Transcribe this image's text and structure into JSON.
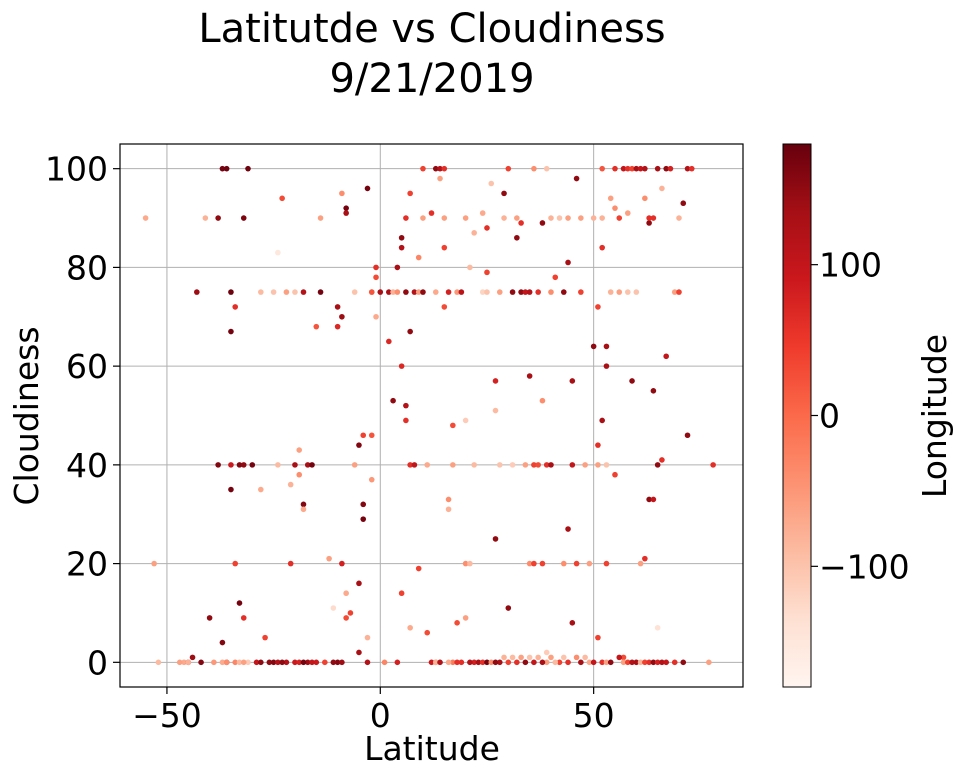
{
  "chart_data": {
    "type": "scatter",
    "title": [
      "Latitutde vs Cloudiness",
      "9/21/2019"
    ],
    "xlabel": "Latitude",
    "ylabel": "Cloudiness",
    "xlim": [
      -61,
      85
    ],
    "ylim": [
      -5,
      105
    ],
    "xticks": [
      -50,
      0,
      50
    ],
    "yticks": [
      0,
      20,
      40,
      60,
      80,
      100
    ],
    "grid": true,
    "colormap": "Reds",
    "colorbar": {
      "label": "Longitude",
      "range": [
        -180,
        180
      ],
      "ticks": [
        -100,
        0,
        100
      ],
      "colors": [
        "#fff5f0",
        "#fee0d2",
        "#fcbba1",
        "#fc9272",
        "#fb6a4a",
        "#ef3b2c",
        "#cb181d",
        "#a50f15",
        "#67000d"
      ]
    },
    "points": [
      [
        -55,
        90,
        -70
      ],
      [
        -53,
        20,
        -60
      ],
      [
        -52,
        0,
        -90
      ],
      [
        -46,
        0,
        -70
      ],
      [
        -45,
        0,
        120
      ],
      [
        -44,
        1,
        140
      ],
      [
        -43,
        75,
        140
      ],
      [
        -42,
        0,
        160
      ],
      [
        -41,
        90,
        -80
      ],
      [
        -40,
        9,
        150
      ],
      [
        -38,
        90,
        150
      ],
      [
        -38,
        40,
        160
      ],
      [
        -37,
        100,
        170
      ],
      [
        -37,
        4,
        160
      ],
      [
        -36,
        100,
        175
      ],
      [
        -36,
        0,
        120
      ],
      [
        -35,
        67,
        170
      ],
      [
        -35,
        75,
        175
      ],
      [
        -35,
        35,
        170
      ],
      [
        -35,
        40,
        90
      ],
      [
        -34,
        72,
        60
      ],
      [
        -34,
        20,
        40
      ],
      [
        -34,
        0,
        -30
      ],
      [
        -33,
        12,
        170
      ],
      [
        -33,
        40,
        160
      ],
      [
        -32,
        9,
        60
      ],
      [
        -32,
        90,
        165
      ],
      [
        -32,
        40,
        150
      ],
      [
        -31,
        100,
        175
      ],
      [
        -31,
        0,
        -110
      ],
      [
        -30,
        40,
        170
      ],
      [
        -28,
        75,
        -90
      ],
      [
        -28,
        35,
        -70
      ],
      [
        -27,
        5,
        40
      ],
      [
        -26,
        0,
        150
      ],
      [
        -25,
        75,
        -100
      ],
      [
        -24,
        83,
        -150
      ],
      [
        -24,
        40,
        -90
      ],
      [
        -23,
        94,
        30
      ],
      [
        -22,
        75,
        -60
      ],
      [
        -22,
        0,
        120
      ],
      [
        -21,
        20,
        60
      ],
      [
        -21,
        36,
        -80
      ],
      [
        -20,
        40,
        130
      ],
      [
        -20,
        0,
        90
      ],
      [
        -20,
        75,
        -100
      ],
      [
        -19,
        43,
        -60
      ],
      [
        -19,
        38,
        -40
      ],
      [
        -18,
        75,
        120
      ],
      [
        -18,
        32,
        160
      ],
      [
        -18,
        31,
        -70
      ],
      [
        -17,
        40,
        130
      ],
      [
        -17,
        0,
        140
      ],
      [
        -16,
        40,
        170
      ],
      [
        -15,
        68,
        20
      ],
      [
        -15,
        0,
        90
      ],
      [
        -14,
        90,
        -60
      ],
      [
        -14,
        75,
        170
      ],
      [
        -13,
        0,
        40
      ],
      [
        -12,
        21,
        -60
      ],
      [
        -11,
        11,
        -130
      ],
      [
        -10,
        72,
        130
      ],
      [
        -10,
        68,
        70
      ],
      [
        -10,
        0,
        160
      ],
      [
        -9,
        70,
        140
      ],
      [
        -9,
        95,
        -40
      ],
      [
        -9,
        20,
        80
      ],
      [
        -8,
        92,
        170
      ],
      [
        -8,
        91,
        130
      ],
      [
        -8,
        9,
        30
      ],
      [
        -8,
        14,
        -70
      ],
      [
        -7,
        10,
        40
      ],
      [
        -6,
        75,
        -100
      ],
      [
        -6,
        40,
        -60
      ],
      [
        -5,
        44,
        160
      ],
      [
        -5,
        16,
        130
      ],
      [
        -5,
        2,
        130
      ],
      [
        -4,
        29,
        170
      ],
      [
        -4,
        32,
        160
      ],
      [
        -4,
        46,
        40
      ],
      [
        -3,
        96,
        170
      ],
      [
        -3,
        5,
        -80
      ],
      [
        -3,
        0,
        120
      ],
      [
        -2,
        46,
        20
      ],
      [
        -2,
        75,
        -70
      ],
      [
        -2,
        37,
        -50
      ],
      [
        -2,
        75,
        20
      ],
      [
        -1,
        70,
        -70
      ],
      [
        -1,
        80,
        60
      ],
      [
        -1,
        78,
        30
      ],
      [
        0,
        75,
        130
      ],
      [
        1,
        0,
        -30
      ],
      [
        2,
        65,
        70
      ],
      [
        2,
        75,
        130
      ],
      [
        3,
        53,
        150
      ],
      [
        3,
        75,
        -80
      ],
      [
        4,
        0,
        80
      ],
      [
        4,
        80,
        130
      ],
      [
        4,
        75,
        -40
      ],
      [
        5,
        86,
        150
      ],
      [
        5,
        84,
        120
      ],
      [
        5,
        60,
        70
      ],
      [
        5,
        14,
        40
      ],
      [
        6,
        90,
        60
      ],
      [
        6,
        49,
        60
      ],
      [
        6,
        52,
        120
      ],
      [
        6,
        75,
        150
      ],
      [
        7,
        95,
        40
      ],
      [
        7,
        40,
        60
      ],
      [
        7,
        67,
        150
      ],
      [
        7,
        7,
        -70
      ],
      [
        8,
        75,
        120
      ],
      [
        8,
        40,
        100
      ],
      [
        9,
        82,
        -30
      ],
      [
        9,
        75,
        -60
      ],
      [
        9,
        19,
        40
      ],
      [
        10,
        75,
        150
      ],
      [
        10,
        100,
        40
      ],
      [
        10,
        90,
        -60
      ],
      [
        11,
        40,
        -70
      ],
      [
        11,
        6,
        30
      ],
      [
        12,
        91,
        60
      ],
      [
        12,
        0,
        90
      ],
      [
        13,
        75,
        -70
      ],
      [
        13,
        100,
        150
      ],
      [
        13,
        0,
        40
      ],
      [
        14,
        100,
        120
      ],
      [
        14,
        98,
        -60
      ],
      [
        15,
        100,
        60
      ],
      [
        15,
        90,
        -60
      ],
      [
        15,
        84,
        40
      ],
      [
        15,
        72,
        30
      ],
      [
        16,
        75,
        80
      ],
      [
        16,
        33,
        -40
      ],
      [
        16,
        31,
        -80
      ],
      [
        17,
        40,
        -60
      ],
      [
        17,
        0,
        -20
      ],
      [
        17,
        48,
        30
      ],
      [
        18,
        75,
        -50
      ],
      [
        18,
        8,
        30
      ],
      [
        19,
        75,
        110
      ],
      [
        19,
        0,
        60
      ],
      [
        20,
        49,
        -110
      ],
      [
        20,
        90,
        -60
      ],
      [
        20,
        20,
        -40
      ],
      [
        20,
        9,
        -60
      ],
      [
        21,
        80,
        -90
      ],
      [
        21,
        20,
        -90
      ],
      [
        22,
        87,
        -80
      ],
      [
        22,
        40,
        -90
      ],
      [
        22,
        0,
        80
      ],
      [
        23,
        0,
        130
      ],
      [
        24,
        75,
        -120
      ],
      [
        24,
        91,
        -70
      ],
      [
        25,
        79,
        40
      ],
      [
        25,
        75,
        -100
      ],
      [
        25,
        88,
        60
      ],
      [
        26,
        97,
        -100
      ],
      [
        27,
        51,
        -90
      ],
      [
        27,
        57,
        80
      ],
      [
        27,
        25,
        150
      ],
      [
        28,
        40,
        -100
      ],
      [
        28,
        75,
        -60
      ],
      [
        28,
        0,
        130
      ],
      [
        29,
        95,
        150
      ],
      [
        29,
        90,
        -80
      ],
      [
        30,
        100,
        40
      ],
      [
        30,
        11,
        150
      ],
      [
        30,
        0,
        40
      ],
      [
        31,
        75,
        150
      ],
      [
        31,
        40,
        -110
      ],
      [
        32,
        86,
        150
      ],
      [
        32,
        90,
        -60
      ],
      [
        33,
        89,
        60
      ],
      [
        33,
        75,
        150
      ],
      [
        34,
        40,
        -60
      ],
      [
        34,
        75,
        100
      ],
      [
        35,
        58,
        130
      ],
      [
        35,
        75,
        120
      ],
      [
        35,
        20,
        -40
      ],
      [
        36,
        100,
        -40
      ],
      [
        36,
        20,
        40
      ],
      [
        36,
        40,
        40
      ],
      [
        37,
        75,
        60
      ],
      [
        37,
        40,
        30
      ],
      [
        38,
        89,
        150
      ],
      [
        38,
        53,
        -40
      ],
      [
        38,
        20,
        40
      ],
      [
        39,
        100,
        -100
      ],
      [
        39,
        40,
        60
      ],
      [
        39,
        0,
        -60
      ],
      [
        40,
        90,
        -80
      ],
      [
        40,
        75,
        -40
      ],
      [
        40,
        40,
        130
      ],
      [
        41,
        78,
        40
      ],
      [
        42,
        90,
        -100
      ],
      [
        42,
        0,
        40
      ],
      [
        43,
        75,
        150
      ],
      [
        43,
        20,
        -40
      ],
      [
        44,
        81,
        130
      ],
      [
        44,
        90,
        -60
      ],
      [
        44,
        27,
        130
      ],
      [
        45,
        8,
        130
      ],
      [
        45,
        57,
        130
      ],
      [
        45,
        40,
        100
      ],
      [
        46,
        98,
        150
      ],
      [
        46,
        20,
        40
      ],
      [
        47,
        90,
        -60
      ],
      [
        47,
        75,
        40
      ],
      [
        48,
        40,
        -60
      ],
      [
        49,
        20,
        -60
      ],
      [
        50,
        90,
        -80
      ],
      [
        50,
        64,
        150
      ],
      [
        51,
        72,
        40
      ],
      [
        51,
        44,
        60
      ],
      [
        51,
        5,
        40
      ],
      [
        51,
        40,
        -60
      ],
      [
        52,
        90,
        -80
      ],
      [
        52,
        100,
        20
      ],
      [
        52,
        84,
        60
      ],
      [
        52,
        49,
        130
      ],
      [
        53,
        64,
        130
      ],
      [
        53,
        60,
        130
      ],
      [
        53,
        20,
        40
      ],
      [
        53,
        40,
        -100
      ],
      [
        54,
        94,
        -60
      ],
      [
        54,
        75,
        -80
      ],
      [
        55,
        92,
        -40
      ],
      [
        55,
        38,
        40
      ],
      [
        55,
        100,
        60
      ],
      [
        56,
        75,
        -60
      ],
      [
        56,
        90,
        40
      ],
      [
        57,
        100,
        100
      ],
      [
        57,
        1,
        30
      ],
      [
        58,
        100,
        60
      ],
      [
        58,
        75,
        -100
      ],
      [
        58,
        91,
        -60
      ],
      [
        59,
        100,
        40
      ],
      [
        59,
        57,
        150
      ],
      [
        60,
        100,
        130
      ],
      [
        60,
        75,
        -100
      ],
      [
        61,
        20,
        -60
      ],
      [
        61,
        100,
        100
      ],
      [
        62,
        21,
        60
      ],
      [
        62,
        100,
        120
      ],
      [
        62,
        94,
        -40
      ],
      [
        63,
        89,
        150
      ],
      [
        63,
        33,
        150
      ],
      [
        63,
        90,
        60
      ],
      [
        64,
        55,
        150
      ],
      [
        64,
        33,
        100
      ],
      [
        64,
        90,
        60
      ],
      [
        65,
        100,
        130
      ],
      [
        65,
        40,
        150
      ],
      [
        65,
        7,
        -140
      ],
      [
        66,
        41,
        60
      ],
      [
        66,
        96,
        -80
      ],
      [
        67,
        100,
        150
      ],
      [
        67,
        62,
        100
      ],
      [
        68,
        100,
        80
      ],
      [
        69,
        75,
        -60
      ],
      [
        70,
        75,
        40
      ],
      [
        70,
        90,
        -80
      ],
      [
        71,
        93,
        150
      ],
      [
        72,
        46,
        150
      ],
      [
        72,
        100,
        120
      ],
      [
        73,
        100,
        60
      ],
      [
        77,
        0,
        -60
      ],
      [
        78,
        40,
        60
      ],
      [
        13,
        0,
        -80
      ],
      [
        14,
        0,
        120
      ],
      [
        16,
        0,
        -70
      ],
      [
        18,
        0,
        60
      ],
      [
        21,
        0,
        120
      ],
      [
        24,
        0,
        60
      ],
      [
        25,
        0,
        170
      ],
      [
        26,
        0,
        -40
      ],
      [
        27,
        0,
        150
      ],
      [
        29,
        1,
        -80
      ],
      [
        31,
        1,
        -90
      ],
      [
        32,
        0,
        60
      ],
      [
        33,
        1,
        -60
      ],
      [
        34,
        0,
        150
      ],
      [
        35,
        1,
        -100
      ],
      [
        36,
        0,
        100
      ],
      [
        37,
        1,
        -80
      ],
      [
        38,
        0,
        130
      ],
      [
        39,
        2,
        -110
      ],
      [
        40,
        1,
        -60
      ],
      [
        41,
        0,
        -90
      ],
      [
        43,
        1,
        -100
      ],
      [
        44,
        0,
        60
      ],
      [
        46,
        1,
        -40
      ],
      [
        47,
        0,
        130
      ],
      [
        48,
        1,
        -90
      ],
      [
        49,
        0,
        -70
      ],
      [
        50,
        0,
        100
      ],
      [
        52,
        0,
        60
      ],
      [
        53,
        0,
        -60
      ],
      [
        54,
        0,
        150
      ],
      [
        56,
        1,
        100
      ],
      [
        57,
        0,
        -60
      ],
      [
        58,
        0,
        40
      ],
      [
        59,
        0,
        120
      ],
      [
        60,
        0,
        130
      ],
      [
        61,
        0,
        -80
      ],
      [
        62,
        0,
        40
      ],
      [
        63,
        0,
        60
      ],
      [
        64,
        0,
        150
      ],
      [
        65,
        0,
        80
      ],
      [
        66,
        0,
        120
      ],
      [
        67,
        0,
        100
      ],
      [
        69,
        0,
        60
      ],
      [
        71,
        0,
        150
      ],
      [
        -47,
        0,
        -60
      ],
      [
        -45,
        0,
        -80
      ],
      [
        -39,
        0,
        -50
      ],
      [
        -37,
        0,
        -70
      ],
      [
        -36,
        0,
        -40
      ],
      [
        -33,
        0,
        -90
      ],
      [
        -32,
        0,
        -60
      ],
      [
        -29,
        0,
        100
      ],
      [
        -28,
        0,
        150
      ],
      [
        -25,
        0,
        160
      ],
      [
        -24,
        0,
        120
      ],
      [
        -23,
        0,
        150
      ],
      [
        -19,
        0,
        80
      ],
      [
        -18,
        0,
        170
      ],
      [
        -16,
        0,
        100
      ],
      [
        -11,
        0,
        150
      ],
      [
        -9,
        0,
        140
      ]
    ]
  }
}
